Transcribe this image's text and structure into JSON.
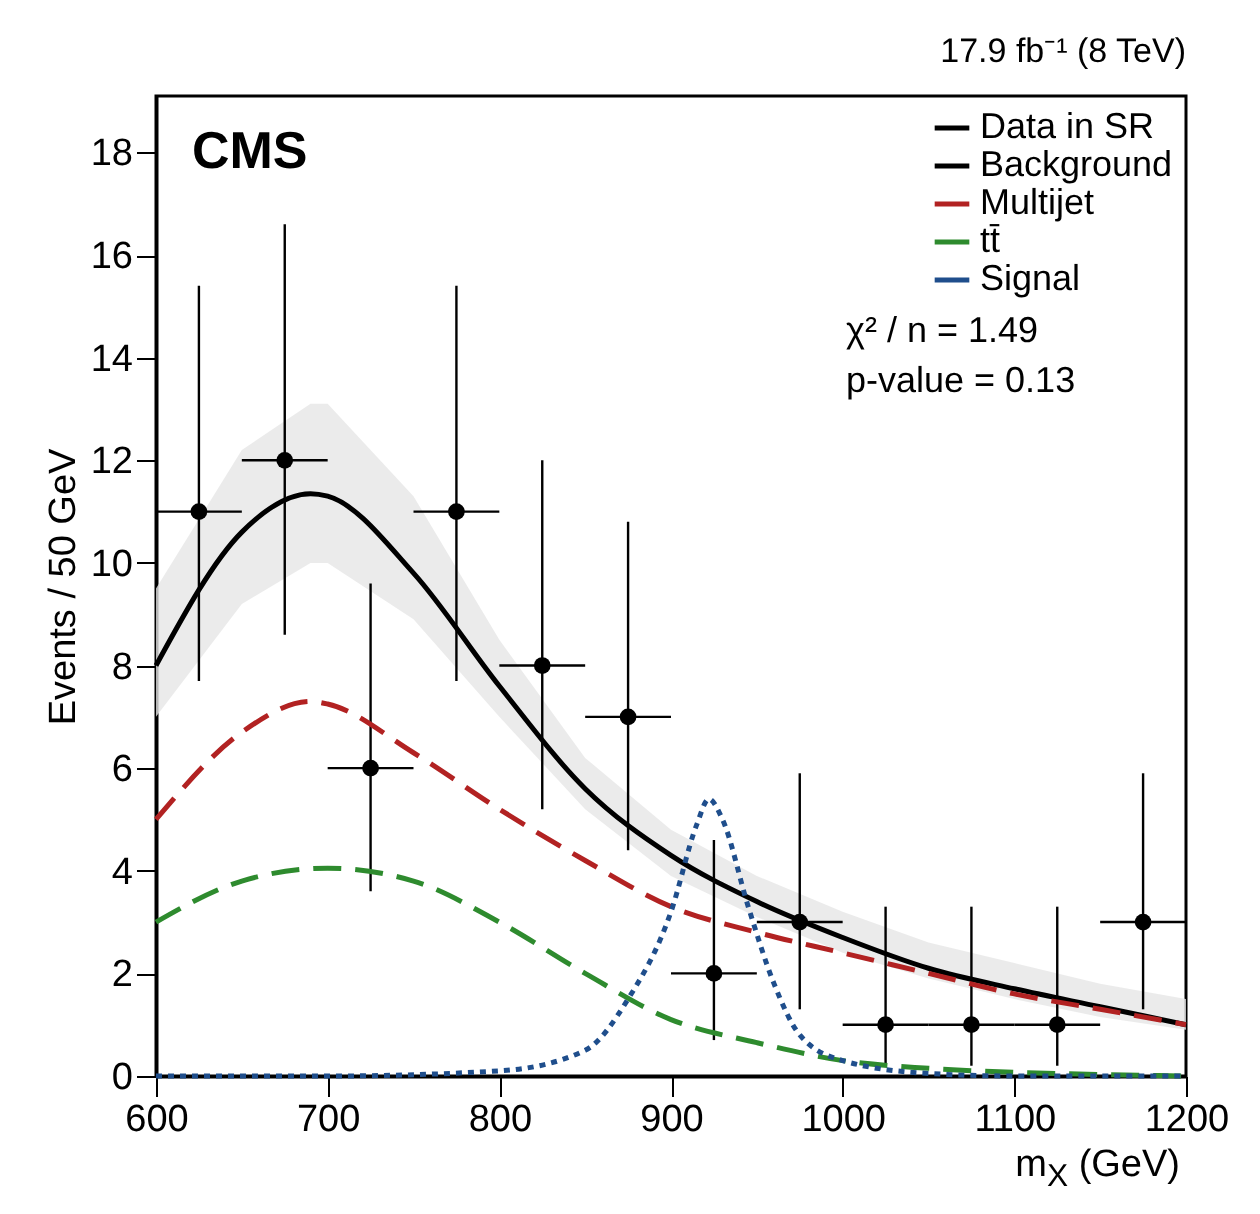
{
  "chart_data": {
    "type": "line",
    "xlabel": "m$_{X}$ (GeV)",
    "ylabel": "Events / 50 GeV",
    "annotations": [
      "CMS",
      "17.9 fb⁻¹ (8 TeV)",
      "χ² / n = 1.49",
      "p-value = 0.13"
    ],
    "xlim": [
      600,
      1200
    ],
    "xticks": [
      600,
      700,
      800,
      900,
      1000,
      1100,
      1200
    ],
    "ylim": [
      0,
      19.1
    ],
    "yticks": [
      0,
      2,
      4,
      6,
      8,
      10,
      12,
      14,
      16,
      18
    ],
    "grid": false,
    "legend": "top right",
    "series": [
      {
        "name": "Data in SR",
        "type": "scatter",
        "marker": "circle",
        "color": "#000000",
        "x": [
          625,
          675,
          725,
          775,
          825,
          875,
          925,
          975,
          1025,
          1075,
          1125,
          1175
        ],
        "values": [
          11,
          12,
          6,
          11,
          8,
          7,
          2,
          3,
          1,
          1,
          1,
          3
        ],
        "errors": [
          [
            7.7,
            15.4
          ],
          [
            8.6,
            16.6
          ],
          [
            3.6,
            9.6
          ],
          [
            7.7,
            15.4
          ],
          [
            5.2,
            12.0
          ],
          [
            4.4,
            10.8
          ],
          [
            0.7,
            4.6
          ],
          [
            1.3,
            5.9
          ],
          [
            0.2,
            3.3
          ],
          [
            0.2,
            3.3
          ],
          [
            0.2,
            3.3
          ],
          [
            1.3,
            5.9
          ]
        ],
        "xerrors": [
          25,
          25,
          25,
          25,
          25,
          25,
          25,
          25,
          25,
          25,
          25,
          25
        ]
      },
      {
        "name": "Background",
        "type": "line",
        "line_style": "solid",
        "color": "#000000",
        "x": [
          600,
          650,
          690,
          700,
          750,
          800,
          850,
          900,
          950,
          1000,
          1050,
          1100,
          1150,
          1200
        ],
        "values": [
          8,
          10.6,
          11.35,
          11.3,
          9.8,
          7.6,
          5.6,
          4.3,
          3.4,
          2.7,
          2.1,
          1.7,
          1.35,
          1.0
        ],
        "lower": [
          7,
          9.2,
          10.0,
          10.0,
          8.9,
          7.0,
          5.2,
          3.9,
          3.1,
          2.4,
          1.9,
          1.5,
          1.15,
          0.9
        ],
        "upper": [
          9.5,
          12.2,
          13.1,
          13.1,
          11.3,
          8.5,
          6.2,
          4.8,
          3.9,
          3.2,
          2.6,
          2.2,
          1.8,
          1.5
        ]
      },
      {
        "name": "Multijet",
        "type": "line",
        "line_style": "dashed",
        "color": "#b22222",
        "x": [
          600,
          650,
          690,
          700,
          750,
          800,
          850,
          900,
          950,
          1000,
          1050,
          1100,
          1150,
          1200
        ],
        "values": [
          5,
          6.7,
          7.3,
          7.25,
          6.3,
          5.2,
          4.2,
          3.3,
          2.8,
          2.4,
          2.0,
          1.6,
          1.3,
          1.0
        ]
      },
      {
        "name": "tt̄",
        "type": "line",
        "line_style": "dashed",
        "color": "#2e8b2e",
        "x": [
          600,
          650,
          700,
          750,
          800,
          850,
          900,
          950,
          1000,
          1050,
          1100,
          1150,
          1200
        ],
        "values": [
          3,
          3.8,
          4.05,
          3.8,
          3.0,
          2.0,
          1.1,
          0.65,
          0.3,
          0.15,
          0.07,
          0.03,
          0.0
        ]
      },
      {
        "name": "Signal",
        "type": "line",
        "line_style": "dotted",
        "color": "#1f4e8c",
        "x": [
          600,
          700,
          800,
          850,
          875,
          900,
          915,
          922,
          930,
          945,
          960,
          975,
          1000,
          1050,
          1100,
          1200
        ],
        "values": [
          0,
          0,
          0.1,
          0.5,
          1.5,
          3.2,
          4.9,
          5.4,
          5.0,
          3.3,
          1.8,
          0.8,
          0.3,
          0.05,
          0,
          0
        ]
      }
    ]
  }
}
